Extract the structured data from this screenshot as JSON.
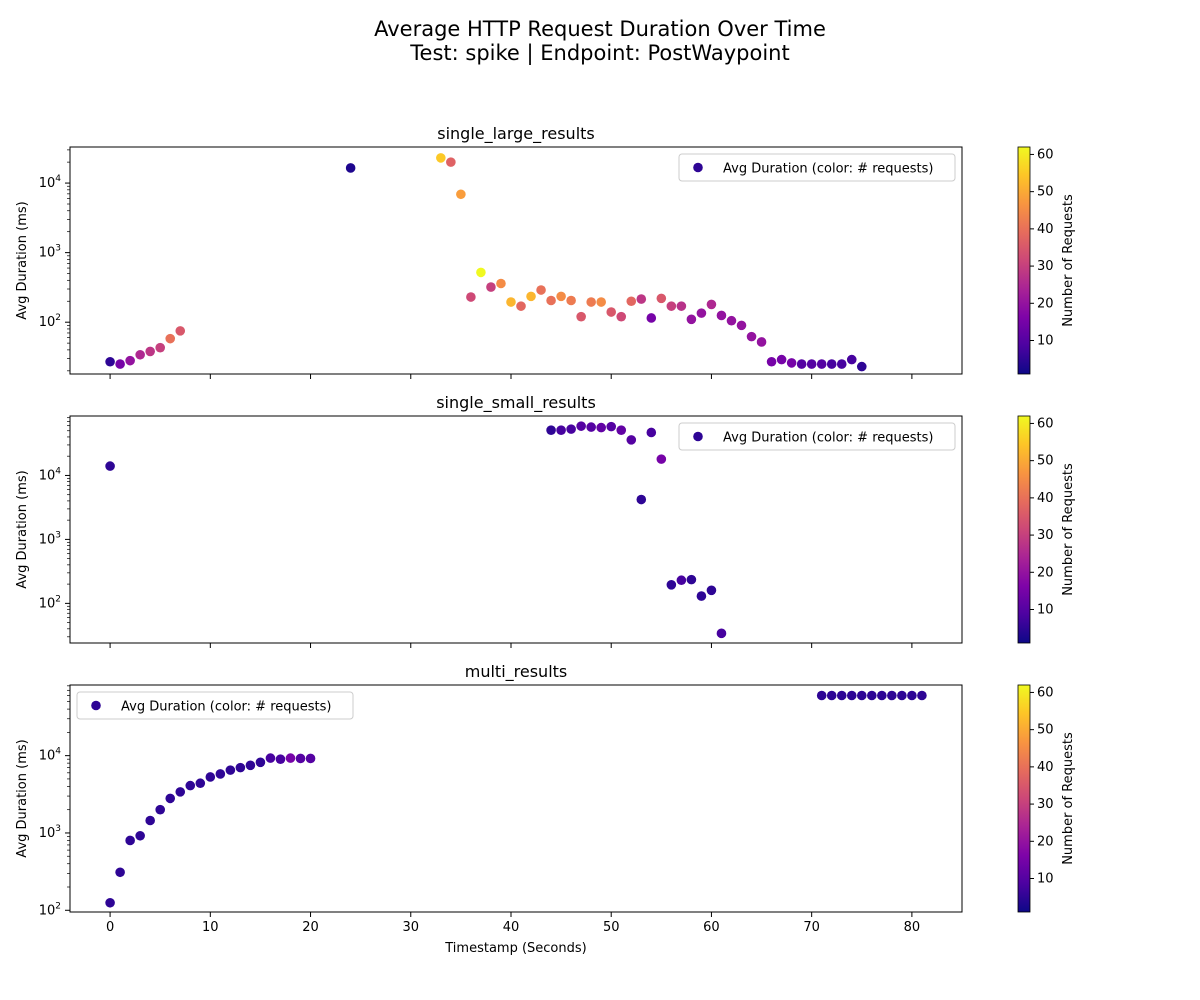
{
  "figure": {
    "title": "Average HTTP Request Duration Over Time",
    "subtitle": "Test: spike | Endpoint: PostWaypoint"
  },
  "shared": {
    "xlabel": "Timestamp (Seconds)",
    "ylabel": "Avg Duration (ms)",
    "x_ticks": [
      0,
      10,
      20,
      30,
      40,
      50,
      60,
      70,
      80
    ],
    "xlim": [
      -4,
      85
    ],
    "legend_label": "Avg Duration (color: # requests)",
    "colorbar_label": "Number of Requests",
    "colorbar_ticks": [
      10,
      20,
      30,
      40,
      50,
      60
    ],
    "colorbar_range": [
      1,
      62
    ],
    "colormap": "plasma"
  },
  "chart_data": [
    {
      "type": "scatter",
      "title": "single_large_results",
      "y_scale": "log",
      "ylim": [
        18,
        33000
      ],
      "y_ticks": [
        "10^2",
        "10^3",
        "10^4"
      ],
      "legend_position": "top-right",
      "points": [
        {
          "x": 0,
          "y": 27,
          "c": 5
        },
        {
          "x": 1,
          "y": 25,
          "c": 15
        },
        {
          "x": 2,
          "y": 28,
          "c": 20
        },
        {
          "x": 3,
          "y": 34,
          "c": 25
        },
        {
          "x": 4,
          "y": 38,
          "c": 28
        },
        {
          "x": 5,
          "y": 43,
          "c": 30
        },
        {
          "x": 6,
          "y": 58,
          "c": 40
        },
        {
          "x": 7,
          "y": 75,
          "c": 35
        },
        {
          "x": 24,
          "y": 16500,
          "c": 3
        },
        {
          "x": 33,
          "y": 23000,
          "c": 55
        },
        {
          "x": 34,
          "y": 20000,
          "c": 37
        },
        {
          "x": 35,
          "y": 6900,
          "c": 48
        },
        {
          "x": 36,
          "y": 230,
          "c": 32
        },
        {
          "x": 37,
          "y": 520,
          "c": 62
        },
        {
          "x": 38,
          "y": 320,
          "c": 30
        },
        {
          "x": 39,
          "y": 360,
          "c": 45
        },
        {
          "x": 40,
          "y": 195,
          "c": 52
        },
        {
          "x": 41,
          "y": 170,
          "c": 38
        },
        {
          "x": 42,
          "y": 235,
          "c": 52
        },
        {
          "x": 43,
          "y": 290,
          "c": 40
        },
        {
          "x": 44,
          "y": 205,
          "c": 40
        },
        {
          "x": 45,
          "y": 235,
          "c": 45
        },
        {
          "x": 46,
          "y": 205,
          "c": 42
        },
        {
          "x": 47,
          "y": 120,
          "c": 35
        },
        {
          "x": 48,
          "y": 195,
          "c": 42
        },
        {
          "x": 49,
          "y": 195,
          "c": 45
        },
        {
          "x": 50,
          "y": 140,
          "c": 35
        },
        {
          "x": 51,
          "y": 120,
          "c": 32
        },
        {
          "x": 52,
          "y": 200,
          "c": 38
        },
        {
          "x": 53,
          "y": 215,
          "c": 28
        },
        {
          "x": 54,
          "y": 115,
          "c": 15
        },
        {
          "x": 55,
          "y": 220,
          "c": 35
        },
        {
          "x": 56,
          "y": 170,
          "c": 30
        },
        {
          "x": 57,
          "y": 170,
          "c": 27
        },
        {
          "x": 58,
          "y": 110,
          "c": 20
        },
        {
          "x": 59,
          "y": 135,
          "c": 20
        },
        {
          "x": 60,
          "y": 180,
          "c": 25
        },
        {
          "x": 61,
          "y": 125,
          "c": 20
        },
        {
          "x": 62,
          "y": 105,
          "c": 20
        },
        {
          "x": 63,
          "y": 90,
          "c": 20
        },
        {
          "x": 64,
          "y": 62,
          "c": 20
        },
        {
          "x": 65,
          "y": 52,
          "c": 20
        },
        {
          "x": 66,
          "y": 27,
          "c": 15
        },
        {
          "x": 67,
          "y": 29,
          "c": 15
        },
        {
          "x": 68,
          "y": 26,
          "c": 15
        },
        {
          "x": 69,
          "y": 25,
          "c": 10
        },
        {
          "x": 70,
          "y": 25,
          "c": 10
        },
        {
          "x": 71,
          "y": 25,
          "c": 10
        },
        {
          "x": 72,
          "y": 25,
          "c": 8
        },
        {
          "x": 73,
          "y": 25,
          "c": 8
        },
        {
          "x": 74,
          "y": 29,
          "c": 8
        },
        {
          "x": 75,
          "y": 23,
          "c": 5
        }
      ]
    },
    {
      "type": "scatter",
      "title": "single_small_results",
      "y_scale": "log",
      "ylim": [
        24,
        85000
      ],
      "y_ticks": [
        "10^2",
        "10^3",
        "10^4"
      ],
      "legend_position": "top-right",
      "points": [
        {
          "x": 0,
          "y": 14000,
          "c": 5
        },
        {
          "x": 44,
          "y": 51000,
          "c": 5
        },
        {
          "x": 45,
          "y": 51000,
          "c": 8
        },
        {
          "x": 46,
          "y": 53000,
          "c": 8
        },
        {
          "x": 47,
          "y": 59000,
          "c": 10
        },
        {
          "x": 48,
          "y": 57000,
          "c": 10
        },
        {
          "x": 49,
          "y": 56000,
          "c": 12
        },
        {
          "x": 50,
          "y": 58000,
          "c": 10
        },
        {
          "x": 51,
          "y": 51000,
          "c": 12
        },
        {
          "x": 52,
          "y": 36000,
          "c": 10
        },
        {
          "x": 53,
          "y": 4200,
          "c": 5
        },
        {
          "x": 54,
          "y": 47000,
          "c": 8
        },
        {
          "x": 55,
          "y": 18000,
          "c": 15
        },
        {
          "x": 56,
          "y": 195,
          "c": 5
        },
        {
          "x": 57,
          "y": 230,
          "c": 8
        },
        {
          "x": 58,
          "y": 235,
          "c": 5
        },
        {
          "x": 59,
          "y": 130,
          "c": 5
        },
        {
          "x": 60,
          "y": 160,
          "c": 5
        },
        {
          "x": 61,
          "y": 34,
          "c": 8
        }
      ]
    },
    {
      "type": "scatter",
      "title": "multi_results",
      "y_scale": "log",
      "ylim": [
        95,
        82000
      ],
      "y_ticks": [
        "10^2",
        "10^3",
        "10^4"
      ],
      "legend_position": "top-left",
      "points": [
        {
          "x": 0,
          "y": 125,
          "c": 5
        },
        {
          "x": 1,
          "y": 310,
          "c": 5
        },
        {
          "x": 2,
          "y": 800,
          "c": 5
        },
        {
          "x": 3,
          "y": 920,
          "c": 5
        },
        {
          "x": 4,
          "y": 1450,
          "c": 5
        },
        {
          "x": 5,
          "y": 2000,
          "c": 5
        },
        {
          "x": 6,
          "y": 2800,
          "c": 5
        },
        {
          "x": 7,
          "y": 3400,
          "c": 5
        },
        {
          "x": 8,
          "y": 4100,
          "c": 5
        },
        {
          "x": 9,
          "y": 4400,
          "c": 5
        },
        {
          "x": 10,
          "y": 5300,
          "c": 5
        },
        {
          "x": 11,
          "y": 5800,
          "c": 5
        },
        {
          "x": 12,
          "y": 6500,
          "c": 5
        },
        {
          "x": 13,
          "y": 7000,
          "c": 5
        },
        {
          "x": 14,
          "y": 7500,
          "c": 5
        },
        {
          "x": 15,
          "y": 8200,
          "c": 5
        },
        {
          "x": 16,
          "y": 9300,
          "c": 8
        },
        {
          "x": 17,
          "y": 9000,
          "c": 8
        },
        {
          "x": 18,
          "y": 9300,
          "c": 15
        },
        {
          "x": 19,
          "y": 9200,
          "c": 10
        },
        {
          "x": 20,
          "y": 9200,
          "c": 10
        },
        {
          "x": 71,
          "y": 60000,
          "c": 5
        },
        {
          "x": 72,
          "y": 60000,
          "c": 5
        },
        {
          "x": 73,
          "y": 60000,
          "c": 5
        },
        {
          "x": 74,
          "y": 60000,
          "c": 5
        },
        {
          "x": 75,
          "y": 60000,
          "c": 5
        },
        {
          "x": 76,
          "y": 60000,
          "c": 5
        },
        {
          "x": 77,
          "y": 60000,
          "c": 5
        },
        {
          "x": 78,
          "y": 60000,
          "c": 5
        },
        {
          "x": 79,
          "y": 60000,
          "c": 5
        },
        {
          "x": 80,
          "y": 60000,
          "c": 5
        },
        {
          "x": 81,
          "y": 60000,
          "c": 5
        }
      ]
    }
  ]
}
